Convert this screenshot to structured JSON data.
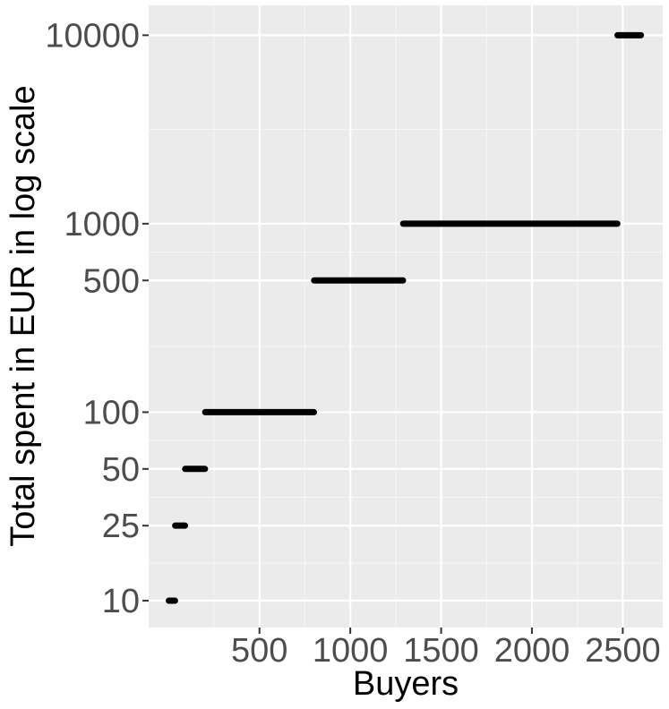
{
  "chart_data": {
    "type": "scatter",
    "title": "",
    "xlabel": "Buyers",
    "ylabel": "Total spent in EUR in log scale",
    "y_scale": "log",
    "xlim": [
      -110,
      2720
    ],
    "ylim": [
      7.2,
      14400
    ],
    "x_ticks": [
      500,
      1000,
      1500,
      2000,
      2500
    ],
    "x_tick_labels": [
      "500",
      "1000",
      "1500",
      "2000",
      "2500"
    ],
    "y_ticks": [
      10,
      25,
      50,
      100,
      500,
      1000,
      10000
    ],
    "y_tick_labels": [
      "10",
      "25",
      "50",
      "100",
      "500",
      "1000",
      "10000"
    ],
    "grid": true,
    "legend": "none",
    "colors": {
      "panel_background": "#ebebeb",
      "grid_major": "#ffffff",
      "grid_minor": "#f5f5f5",
      "points": "#000000",
      "tick_label": "#4d4d4d",
      "axis_title": "#000000"
    },
    "series": [
      {
        "segments": [
          {
            "y": 10,
            "x_start": 1,
            "x_end": 35
          },
          {
            "y": 25,
            "x_start": 36,
            "x_end": 90
          },
          {
            "y": 50,
            "x_start": 91,
            "x_end": 200
          },
          {
            "y": 100,
            "x_start": 201,
            "x_end": 800
          },
          {
            "y": 500,
            "x_start": 801,
            "x_end": 1290
          },
          {
            "y": 1000,
            "x_start": 1291,
            "x_end": 2470
          },
          {
            "y": 10000,
            "x_start": 2471,
            "x_end": 2600
          }
        ]
      }
    ]
  }
}
